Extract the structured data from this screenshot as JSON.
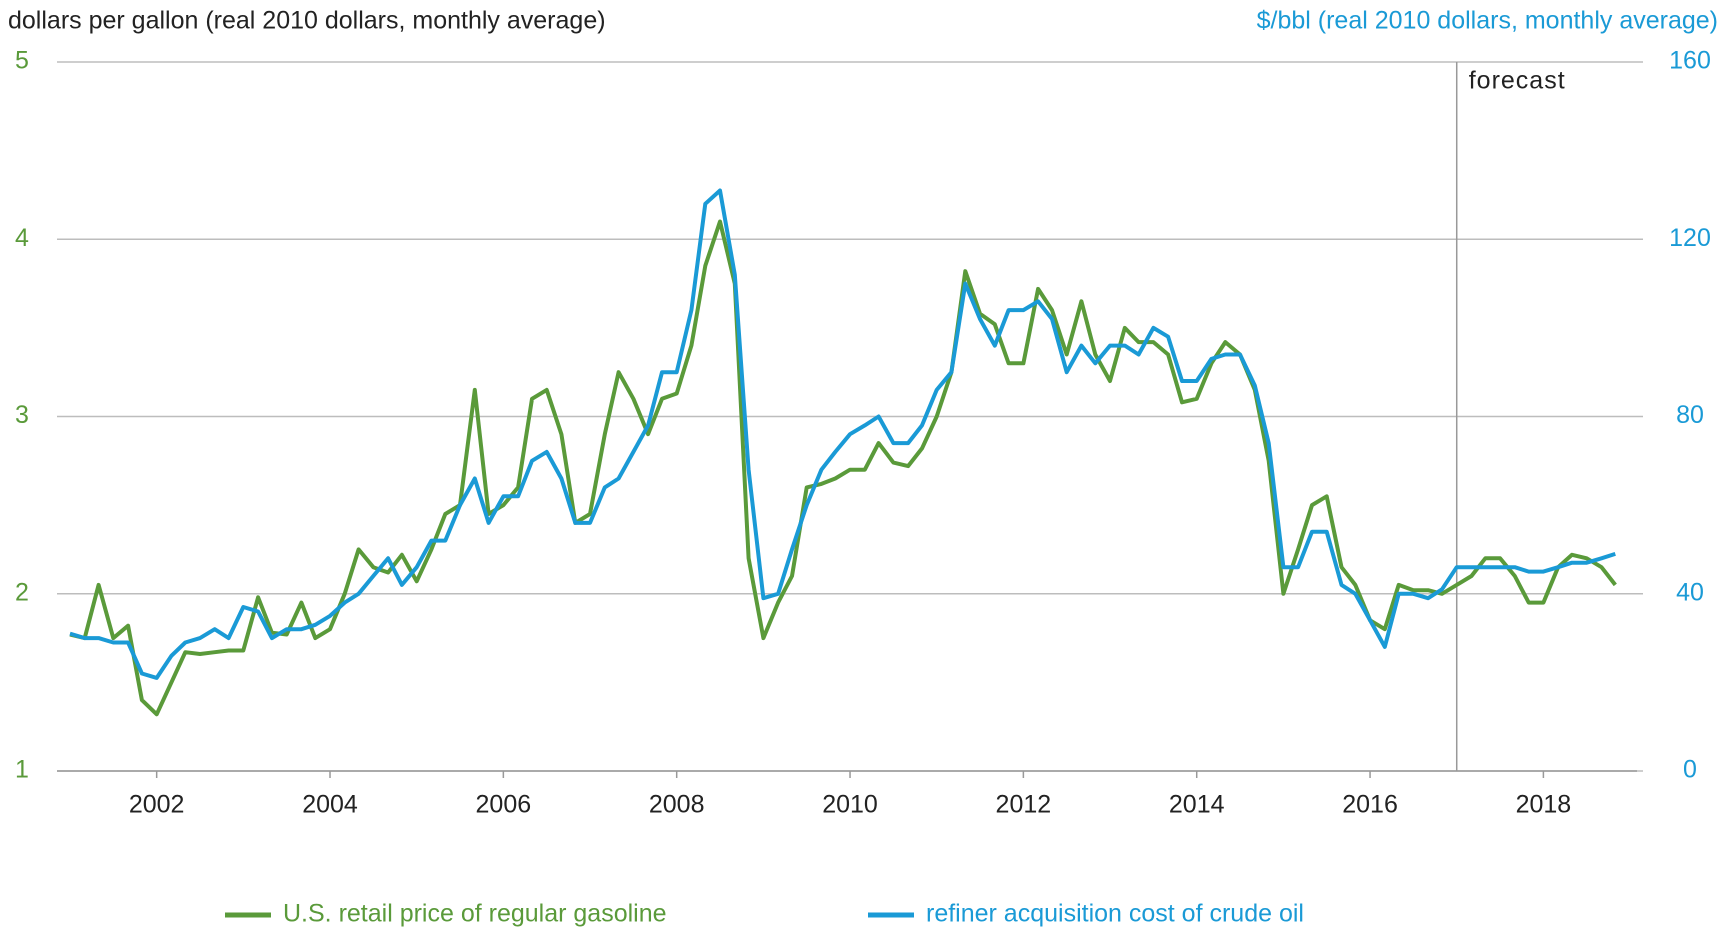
{
  "chart_data": {
    "type": "line",
    "y_label": "dollars per gallon (real 2010 dollars, monthly average)",
    "y2_label": "$/bbl (real 2010 dollars, monthly average)",
    "annotation": {
      "text": "forecast",
      "x": 2017
    },
    "xlim": [
      2000.85,
      2019.08
    ],
    "xticks": [
      2002,
      2004,
      2006,
      2008,
      2010,
      2012,
      2014,
      2016,
      2018
    ],
    "ylim": [
      1,
      5
    ],
    "yticks": [
      1,
      2,
      3,
      4,
      5
    ],
    "y2lim": [
      0,
      160
    ],
    "y2ticks": [
      0,
      40,
      80,
      120,
      160
    ],
    "grid": true,
    "legend": "bottom",
    "x": [
      2001,
      2001.17,
      2001.33,
      2001.5,
      2001.67,
      2001.83,
      2002,
      2002.17,
      2002.33,
      2002.5,
      2002.67,
      2002.83,
      2003,
      2003.17,
      2003.33,
      2003.5,
      2003.67,
      2003.83,
      2004,
      2004.17,
      2004.33,
      2004.5,
      2004.67,
      2004.83,
      2005,
      2005.17,
      2005.33,
      2005.5,
      2005.67,
      2005.83,
      2006,
      2006.17,
      2006.33,
      2006.5,
      2006.67,
      2006.83,
      2007,
      2007.17,
      2007.33,
      2007.5,
      2007.67,
      2007.83,
      2008,
      2008.17,
      2008.33,
      2008.5,
      2008.67,
      2008.83,
      2009,
      2009.17,
      2009.33,
      2009.5,
      2009.67,
      2009.83,
      2010,
      2010.17,
      2010.33,
      2010.5,
      2010.67,
      2010.83,
      2011,
      2011.17,
      2011.33,
      2011.5,
      2011.67,
      2011.83,
      2012,
      2012.17,
      2012.33,
      2012.5,
      2012.67,
      2012.83,
      2013,
      2013.17,
      2013.33,
      2013.5,
      2013.67,
      2013.83,
      2014,
      2014.17,
      2014.33,
      2014.5,
      2014.67,
      2014.83,
      2015,
      2015.17,
      2015.33,
      2015.5,
      2015.67,
      2015.83,
      2016,
      2016.17,
      2016.33,
      2016.5,
      2016.67,
      2016.83,
      2017,
      2017.17,
      2017.33,
      2017.5,
      2017.67,
      2017.83,
      2018,
      2018.17,
      2018.33,
      2018.5,
      2018.67,
      2018.83
    ],
    "series": [
      {
        "name": "U.S. retail price of regular gasoline",
        "color": "#5a9a3a",
        "axis": "y",
        "values": [
          1.77,
          1.75,
          2.05,
          1.75,
          1.82,
          1.4,
          1.32,
          1.5,
          1.67,
          1.66,
          1.67,
          1.68,
          1.68,
          1.98,
          1.78,
          1.77,
          1.95,
          1.75,
          1.8,
          2.0,
          2.25,
          2.15,
          2.12,
          2.22,
          2.07,
          2.25,
          2.45,
          2.5,
          3.15,
          2.45,
          2.5,
          2.6,
          3.1,
          3.15,
          2.9,
          2.4,
          2.45,
          2.9,
          3.25,
          3.1,
          2.9,
          3.1,
          3.13,
          3.4,
          3.85,
          4.1,
          3.75,
          2.2,
          1.75,
          1.95,
          2.1,
          2.6,
          2.62,
          2.65,
          2.7,
          2.7,
          2.85,
          2.74,
          2.72,
          2.82,
          3.0,
          3.25,
          3.82,
          3.58,
          3.52,
          3.3,
          3.3,
          3.72,
          3.6,
          3.35,
          3.65,
          3.35,
          3.2,
          3.5,
          3.42,
          3.42,
          3.35,
          3.08,
          3.1,
          3.3,
          3.42,
          3.35,
          3.15,
          2.75,
          2.0,
          2.25,
          2.5,
          2.55,
          2.15,
          2.05,
          1.85,
          1.8,
          2.05,
          2.02,
          2.02,
          2.0,
          2.05,
          2.1,
          2.2,
          2.2,
          2.1,
          1.95,
          1.95,
          2.15,
          2.22,
          2.2,
          2.15,
          2.05
        ]
      },
      {
        "name": "refiner acquisition cost of crude oil",
        "color": "#1a9ad6",
        "axis": "y2",
        "values": [
          31,
          30,
          30,
          29,
          29,
          22,
          21,
          26,
          29,
          30,
          32,
          30,
          37,
          36,
          30,
          32,
          32,
          33,
          35,
          38,
          40,
          44,
          48,
          42,
          46,
          52,
          52,
          60,
          66,
          56,
          62,
          62,
          70,
          72,
          66,
          56,
          56,
          64,
          66,
          72,
          78,
          90,
          90,
          104,
          128,
          131,
          112,
          68,
          39,
          40,
          50,
          60,
          68,
          72,
          76,
          78,
          80,
          74,
          74,
          78,
          86,
          90,
          110,
          102,
          96,
          104,
          104,
          106,
          102,
          90,
          96,
          92,
          96,
          96,
          94,
          100,
          98,
          88,
          88,
          93,
          94,
          94,
          87,
          74,
          46,
          46,
          54,
          54,
          42,
          40,
          34,
          28,
          40,
          40,
          39,
          41,
          46,
          46,
          46,
          46,
          46,
          45,
          45,
          46,
          47,
          47,
          48,
          49
        ]
      }
    ]
  }
}
